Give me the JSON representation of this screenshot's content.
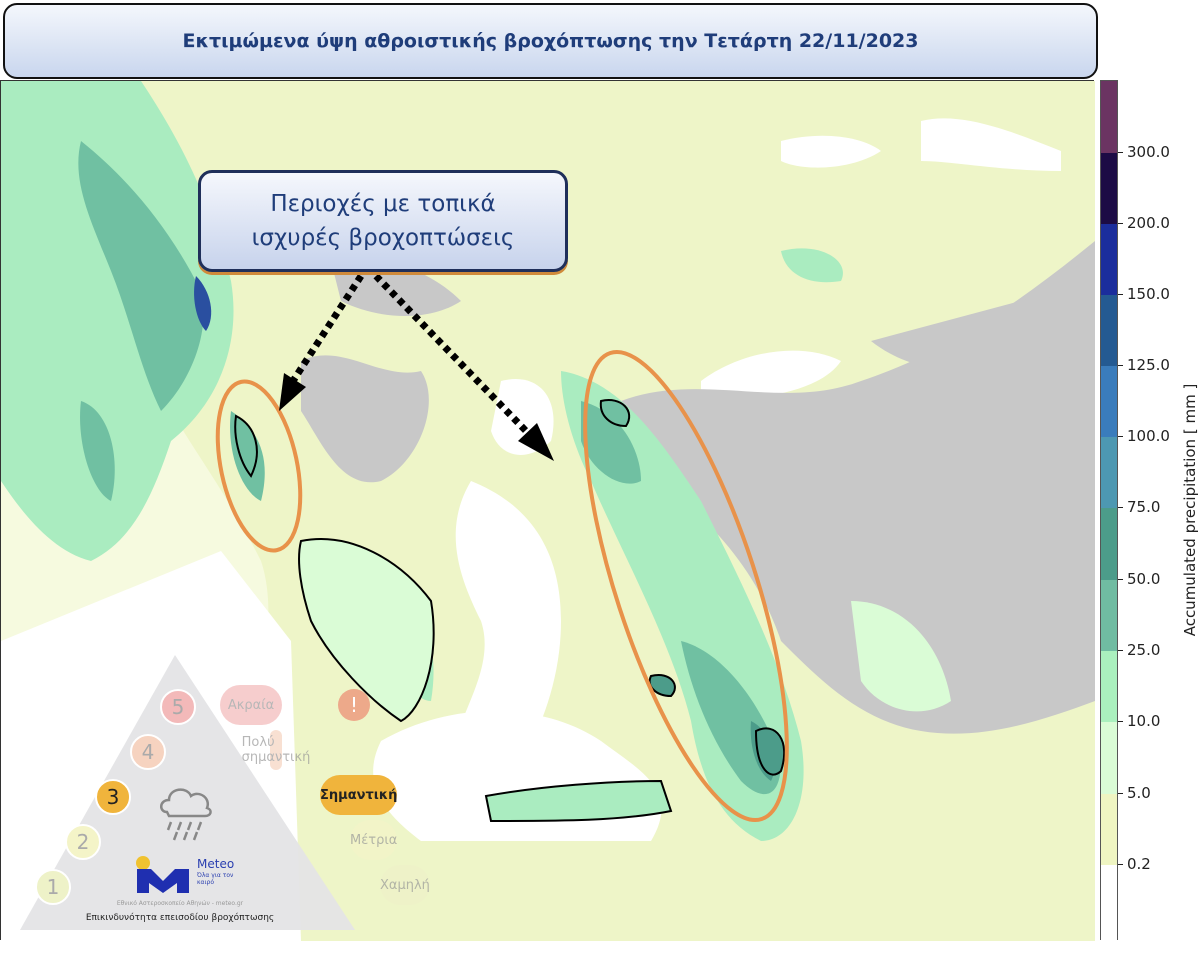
{
  "title": "Εκτιμώμενα ύψη αθροιστικής βροχόπτωσης την Τετάρτη 22/11/2023",
  "callout": {
    "line1": "Περιοχές με τοπικά",
    "line2": "ισχυρές βροχοπτώσεις"
  },
  "colorbar": {
    "label": "Accumulated precipitation [ mm ]",
    "ticks": [
      "300.0",
      "200.0",
      "150.0",
      "125.0",
      "100.0",
      "75.0",
      "50.0",
      "25.0",
      "10.0",
      "5.0",
      "0.2"
    ],
    "colors": [
      "#6b3462",
      "#1c0b45",
      "#1b2d9c",
      "#245a92",
      "#3a7cbc",
      "#4d98b2",
      "#4c9c8a",
      "#70bca2",
      "#aaf0be",
      "#dafcd6",
      "#eff5c2",
      "#ffffff"
    ]
  },
  "map_colors": {
    "land_light": "#eef5c8",
    "very_light": "#dafcd6",
    "light_green": "#aaecc0",
    "green": "#70c0a2",
    "teal": "#4c9c8a",
    "no_data": "#c8c8c8",
    "highlight": "#e8924a"
  },
  "legend": {
    "levels": [
      {
        "num": "5",
        "label": "Ακραία",
        "color": "#f3b9b9"
      },
      {
        "num": "4",
        "label": "Πολύ σημαντική",
        "color": "#f6d3c0"
      },
      {
        "num": "3",
        "label": "Σημαντική",
        "color": "#f0b43c"
      },
      {
        "num": "2",
        "label": "Μέτρια",
        "color": "#f4f4c8"
      },
      {
        "num": "1",
        "label": "Χαμηλή",
        "color": "#eef2c8"
      }
    ],
    "alert_icon": "exclamation-icon",
    "weather_icon": "rain-cloud-icon",
    "logo": {
      "name": "Meteo",
      "tagline": "Όλα για τον καιρό",
      "org": "Εθνικό Αστεροσκοπείο Αθηνών - meteo.gr"
    },
    "caption": "Επικινδυνότητα επεισοδίου βροχόπτωσης"
  }
}
